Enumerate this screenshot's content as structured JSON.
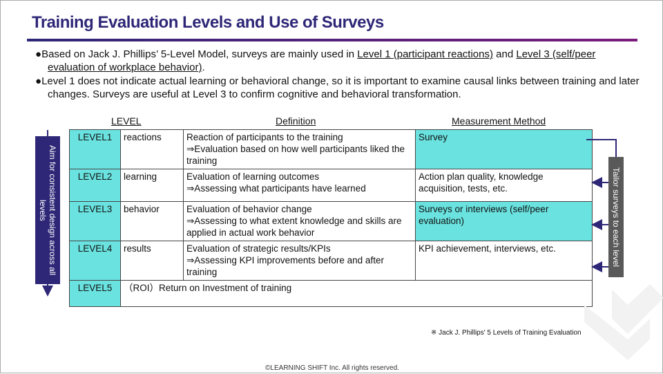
{
  "title": "Training Evaluation Levels and Use of Surveys",
  "bullets": [
    {
      "pre": "Based on Jack J. Phillips’ 5-Level Model, surveys are mainly used in ",
      "u1": "Level 1 (participant reactions)",
      "mid": " and ",
      "u2": "Level 3 (self/peer evaluation of workplace behavior)",
      "post": "."
    },
    {
      "text": "Level 1 does not indicate actual learning or behavioral change, so it is important to examine causal links between training and later changes. Surveys are useful at Level 3 to confirm cognitive and behavioral transformation."
    }
  ],
  "bullet_icon": "●",
  "headers": {
    "level": "LEVEL",
    "definition": "Definition",
    "method": "Measurement Method"
  },
  "rows": [
    {
      "level": "LEVEL1",
      "name": "reactions",
      "def1": "Reaction of participants to the training",
      "def2": "⇒Evaluation based on how well participants liked the training",
      "method": "Survey"
    },
    {
      "level": "LEVEL2",
      "name": "learning",
      "def1": "Evaluation of learning outcomes",
      "def2": "⇒Assessing what participants have learned",
      "method": "Action plan quality, knowledge acquisition, tests, etc."
    },
    {
      "level": "LEVEL3",
      "name": "behavior",
      "def1": "Evaluation of behavior change",
      "def2": "⇒Assessing to what extent knowledge and skills are applied in actual work behavior",
      "method": "Surveys or interviews (self/peer evaluation)"
    },
    {
      "level": "LEVEL4",
      "name": "results",
      "def1": "Evaluation of strategic results/KPIs",
      "def2": "⇒Assessing KPI improvements before and after training",
      "method": "KPI achievement, interviews, etc."
    },
    {
      "level": "LEVEL5",
      "roi": "（ROI）Return on Investment of training"
    }
  ],
  "left_label": "Aim for consistent design across all levels",
  "right_label": "Tailor surveys to each level",
  "note": "※ Jack J. Phillips' 5 Levels of Training Evaluation",
  "footer": "©LEARNING SHIFT Inc. All rights reserved.",
  "colors": {
    "title": "#2e2777",
    "highlight": "#6ae3e0",
    "right_box": "#595959"
  }
}
